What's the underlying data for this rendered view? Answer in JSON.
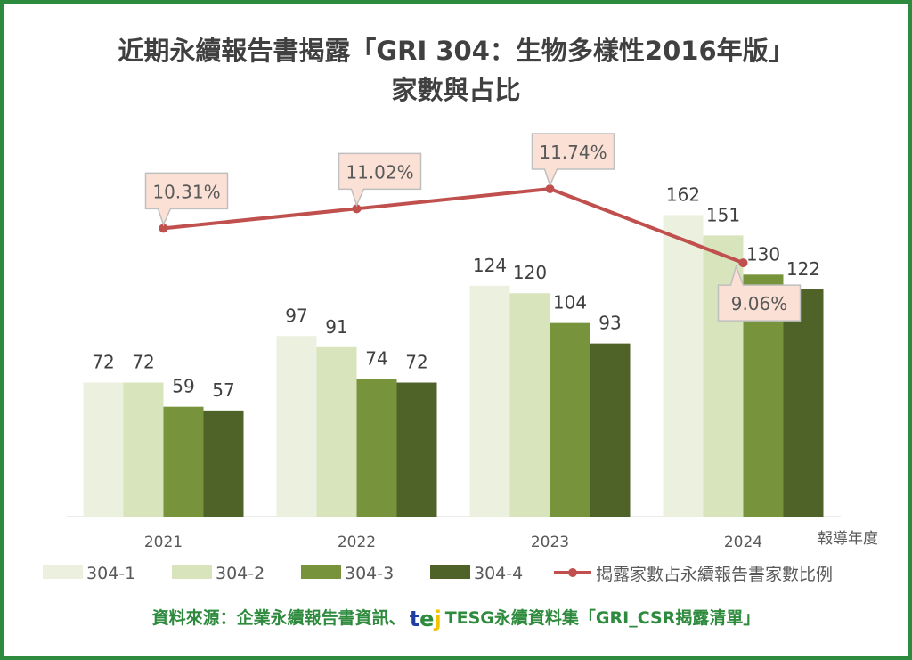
{
  "chart_data": {
    "type": "bar+line",
    "title_line1": "近期永續報告書揭露「GRI 304：生物多樣性2016年版」",
    "title_line2": "家數與占比",
    "xlabel": "報導年度",
    "categories": [
      "2021",
      "2022",
      "2023",
      "2024"
    ],
    "series": [
      {
        "name": "304-1",
        "type": "bar",
        "color": "#ebf0df",
        "values": [
          72,
          97,
          124,
          162
        ]
      },
      {
        "name": "304-2",
        "type": "bar",
        "color": "#d8e4bc",
        "values": [
          72,
          91,
          120,
          151
        ]
      },
      {
        "name": "304-3",
        "type": "bar",
        "color": "#77933c",
        "values": [
          59,
          74,
          104,
          130
        ]
      },
      {
        "name": "304-4",
        "type": "bar",
        "color": "#4f6228",
        "values": [
          57,
          72,
          93,
          122
        ]
      },
      {
        "name": "揭露家數占永續報告書家數比例",
        "type": "line",
        "color": "#c0504d",
        "values": [
          10.31,
          11.02,
          11.74,
          9.06
        ],
        "labels": [
          "10.31%",
          "11.02%",
          "11.74%",
          "9.06%"
        ]
      }
    ],
    "legend": "bottom",
    "grid": false
  },
  "source": {
    "prefix": "資料來源：企業永續報告書資訊、",
    "logo_text": "tej",
    "suffix": "TESG永續資料集「GRI_CSR揭露清單」"
  }
}
